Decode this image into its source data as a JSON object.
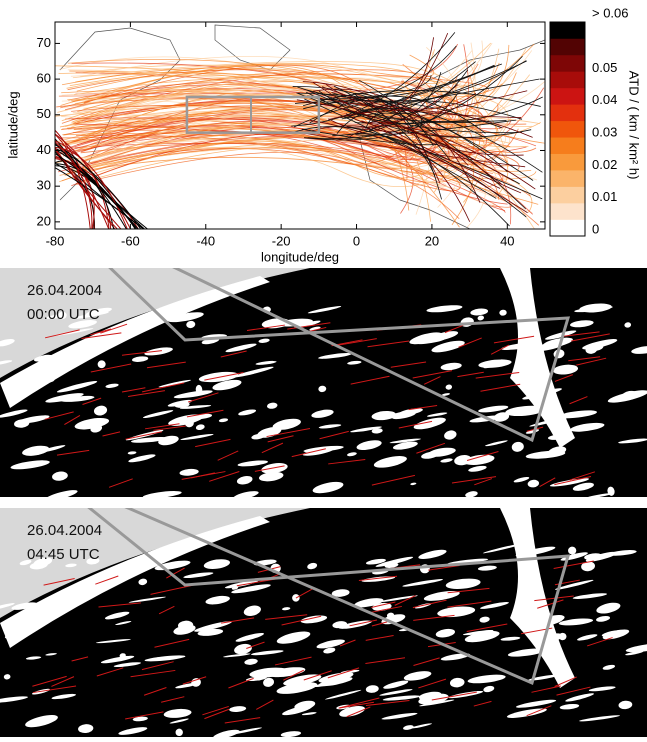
{
  "chart_data": [
    {
      "type": "map",
      "xlabel": "longitude/deg",
      "ylabel": "latitude/deg",
      "xlim": [
        -80,
        50
      ],
      "ylim": [
        18,
        76
      ],
      "xticks": [
        -80,
        -60,
        -40,
        -20,
        0,
        20,
        40
      ],
      "yticks": [
        20,
        30,
        40,
        50,
        60,
        70
      ],
      "regions": [
        {
          "lon": [
            -45,
            -10
          ],
          "lat": [
            45,
            55
          ],
          "divider": -28
        }
      ],
      "colorbar": {
        "label": "ATD / ( km / km² h)",
        "lim": [
          0,
          0.06
        ],
        "colors": [
          "#ffffff",
          "#fde3cc",
          "#fccf9f",
          "#fbb46a",
          "#f99a3c",
          "#f67d1c",
          "#f0560c",
          "#e3300e",
          "#cc1412",
          "#a80c0a",
          "#7e0606",
          "#520303",
          "#000000"
        ],
        "ticks": [
          0.0,
          0.01,
          0.02,
          0.03,
          0.04,
          0.05,
          {
            "value": 0.06,
            "label": "> 0.06"
          }
        ]
      }
    },
    {
      "type": "image",
      "date": "26.04.2004",
      "time": "00:00 UTC"
    },
    {
      "type": "image",
      "date": "26.04.2004",
      "time": "04:45 UTC"
    }
  ]
}
